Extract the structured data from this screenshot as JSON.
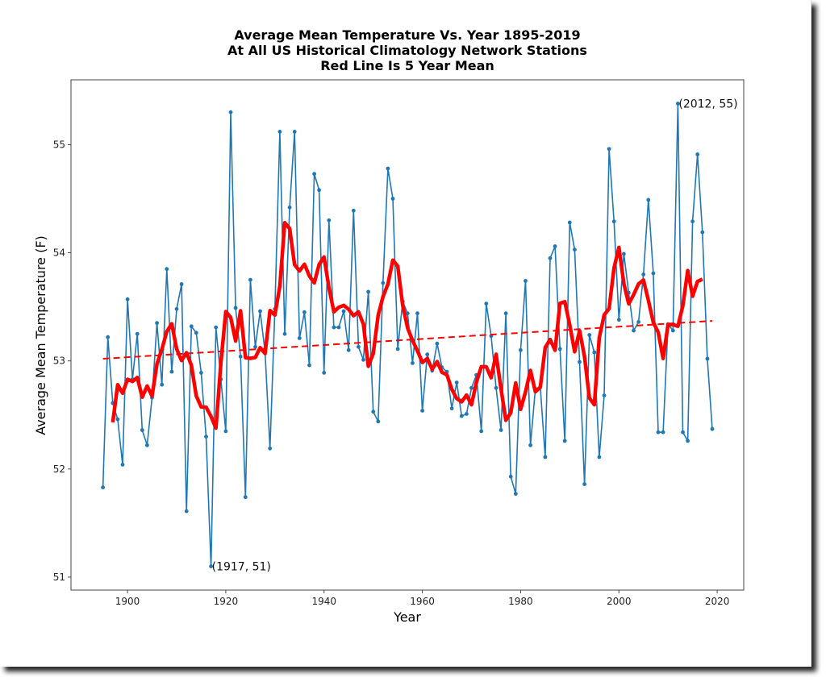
{
  "chart_data": {
    "type": "line",
    "title_lines": [
      "Average Mean Temperature Vs. Year 1895-2019",
      "At All US Historical Climatology Network Stations",
      "Red Line Is 5 Year Mean"
    ],
    "xlabel": "Year",
    "ylabel": "Average Mean Temperature (F)",
    "xlim": [
      1888.5,
      2025.4
    ],
    "ylim": [
      50.88,
      55.6
    ],
    "xticks": [
      1900,
      1920,
      1940,
      1960,
      1980,
      2000,
      2020
    ],
    "yticks": [
      51,
      52,
      53,
      54,
      55
    ],
    "grid": false,
    "colors": {
      "annual": "#1f77b4",
      "mean": "#ff0000",
      "trend": "#ff0000"
    },
    "series": [
      {
        "name": "Annual mean temperature",
        "style": "line-with-dots",
        "x_start": 1895,
        "values": [
          51.83,
          53.22,
          52.61,
          52.46,
          52.04,
          53.57,
          52.83,
          53.25,
          52.36,
          52.22,
          52.66,
          53.35,
          52.78,
          53.85,
          52.9,
          53.48,
          53.71,
          51.61,
          53.32,
          53.26,
          52.89,
          52.3,
          51.1,
          53.31,
          52.83,
          52.35,
          55.3,
          53.49,
          53.04,
          51.74,
          53.75,
          53.13,
          53.46,
          53.08,
          52.19,
          53.48,
          55.12,
          53.25,
          54.42,
          55.12,
          53.21,
          53.45,
          52.96,
          54.73,
          54.58,
          52.89,
          54.3,
          53.31,
          53.31,
          53.46,
          53.1,
          54.39,
          53.13,
          53.01,
          53.64,
          52.53,
          52.44,
          53.72,
          54.78,
          54.5,
          53.11,
          53.55,
          53.44,
          52.98,
          53.44,
          52.54,
          53.06,
          52.91,
          53.16,
          52.94,
          52.9,
          52.56,
          52.8,
          52.49,
          52.51,
          52.75,
          52.87,
          52.35,
          53.53,
          53.23,
          52.75,
          52.36,
          53.44,
          51.93,
          51.77,
          53.1,
          53.74,
          52.22,
          52.74,
          52.76,
          52.11,
          53.95,
          54.06,
          53.11,
          52.26,
          54.28,
          54.03,
          52.99,
          51.86,
          53.24,
          53.08,
          52.11,
          52.68,
          54.96,
          54.29,
          53.38,
          53.99,
          53.63,
          53.28,
          53.36,
          53.8,
          54.49,
          53.81,
          52.34,
          52.34,
          53.34,
          53.28,
          55.38,
          52.34,
          52.26,
          54.29,
          54.91,
          54.19,
          53.02,
          52.37
        ]
      },
      {
        "name": "5 Year Mean",
        "style": "thick-line",
        "window": 5
      },
      {
        "name": "Linear trend",
        "style": "dashed",
        "x": [
          1895,
          2019
        ],
        "values": [
          53.02,
          53.37
        ]
      }
    ],
    "annotations": [
      {
        "text": "(1917, 51)",
        "x": 1917,
        "y": 51.1
      },
      {
        "text": "(2012, 55)",
        "x": 2012,
        "y": 55.38
      }
    ]
  }
}
